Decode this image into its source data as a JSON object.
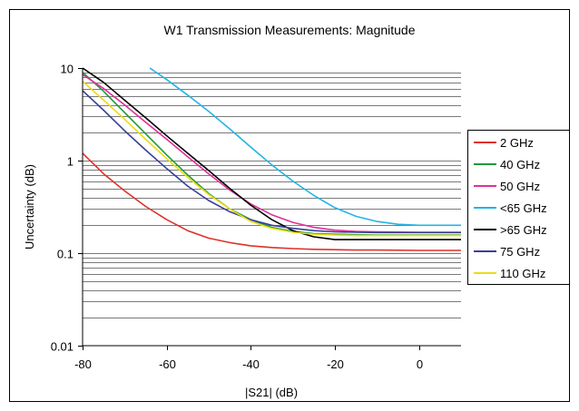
{
  "chart_data": {
    "type": "line",
    "title": "W1 Transmission Measurements: Magnitude",
    "xlabel": "|S21| (dB)",
    "ylabel": "Uncertainty (dB)",
    "xlim": [
      -80,
      10
    ],
    "ylim": [
      0.01,
      10
    ],
    "yscale": "log",
    "grid": "horizontal",
    "legend_position": "right",
    "xticks": [
      -80,
      -60,
      -40,
      -20,
      0
    ],
    "xtick_labels": [
      "-80",
      "-60",
      "-40",
      "-20",
      "0"
    ],
    "yticks": [
      0.01,
      0.1,
      1,
      10
    ],
    "ytick_labels": [
      "0.01",
      "0.1",
      "1",
      "10"
    ],
    "series": [
      {
        "name": "2 GHz",
        "color": "#e0302a",
        "x": [
          -80,
          -75,
          -70,
          -65,
          -60,
          -55,
          -50,
          -45,
          -40,
          -35,
          -30,
          -25,
          -20,
          -15,
          -10,
          0,
          10
        ],
        "y": [
          1.2,
          0.72,
          0.47,
          0.32,
          0.23,
          0.175,
          0.145,
          0.13,
          0.12,
          0.115,
          0.112,
          0.11,
          0.109,
          0.108,
          0.108,
          0.107,
          0.107
        ]
      },
      {
        "name": "40 GHz",
        "color": "#1f9a3a",
        "x": [
          -80,
          -75,
          -70,
          -65,
          -60,
          -55,
          -50,
          -45,
          -40,
          -35,
          -30,
          -25,
          -20,
          -15,
          -10,
          0,
          10
        ],
        "y": [
          9.0,
          5.6,
          3.3,
          1.95,
          1.15,
          0.7,
          0.44,
          0.3,
          0.23,
          0.19,
          0.172,
          0.163,
          0.16,
          0.158,
          0.157,
          0.157,
          0.157
        ]
      },
      {
        "name": "50 GHz",
        "color": "#e0309a",
        "x": [
          -80,
          -75,
          -70,
          -65,
          -60,
          -55,
          -50,
          -45,
          -40,
          -35,
          -30,
          -25,
          -20,
          -15,
          -10,
          0,
          10
        ],
        "y": [
          8.5,
          6.0,
          4.0,
          2.6,
          1.7,
          1.1,
          0.72,
          0.48,
          0.34,
          0.26,
          0.215,
          0.19,
          0.177,
          0.172,
          0.17,
          0.168,
          0.168
        ]
      },
      {
        "name": "<65 GHz",
        "color": "#22b4e6",
        "x": [
          -64,
          -60,
          -55,
          -50,
          -45,
          -40,
          -35,
          -30,
          -25,
          -20,
          -15,
          -10,
          -5,
          0,
          10
        ],
        "y": [
          10.0,
          7.5,
          5.1,
          3.4,
          2.2,
          1.4,
          0.9,
          0.6,
          0.42,
          0.31,
          0.25,
          0.22,
          0.205,
          0.2,
          0.2
        ]
      },
      {
        "name": ">65 GHz",
        "color": "#000000",
        "x": [
          -80,
          -75,
          -70,
          -65,
          -60,
          -55,
          -50,
          -45,
          -40,
          -35,
          -30,
          -25,
          -20,
          -15,
          -10,
          0,
          10
        ],
        "y": [
          10.0,
          7.0,
          4.5,
          2.9,
          1.85,
          1.2,
          0.78,
          0.5,
          0.33,
          0.23,
          0.175,
          0.15,
          0.14,
          0.14,
          0.14,
          0.14,
          0.14
        ]
      },
      {
        "name": "75 GHz",
        "color": "#3a3f96",
        "x": [
          -80,
          -75,
          -70,
          -65,
          -60,
          -55,
          -50,
          -45,
          -40,
          -35,
          -30,
          -25,
          -20,
          -15,
          -10,
          0,
          10
        ],
        "y": [
          5.7,
          3.5,
          2.1,
          1.3,
          0.82,
          0.53,
          0.37,
          0.28,
          0.23,
          0.2,
          0.185,
          0.175,
          0.17,
          0.168,
          0.167,
          0.167,
          0.167
        ]
      },
      {
        "name": "110 GHz",
        "color": "#ecdc14",
        "x": [
          -80,
          -75,
          -70,
          -65,
          -60,
          -55,
          -50,
          -45,
          -40,
          -35,
          -30,
          -25,
          -20,
          -15,
          -10,
          0,
          10
        ],
        "y": [
          7.2,
          4.5,
          2.8,
          1.7,
          1.05,
          0.66,
          0.43,
          0.3,
          0.22,
          0.185,
          0.168,
          0.16,
          0.157,
          0.155,
          0.155,
          0.155,
          0.155
        ]
      }
    ]
  }
}
